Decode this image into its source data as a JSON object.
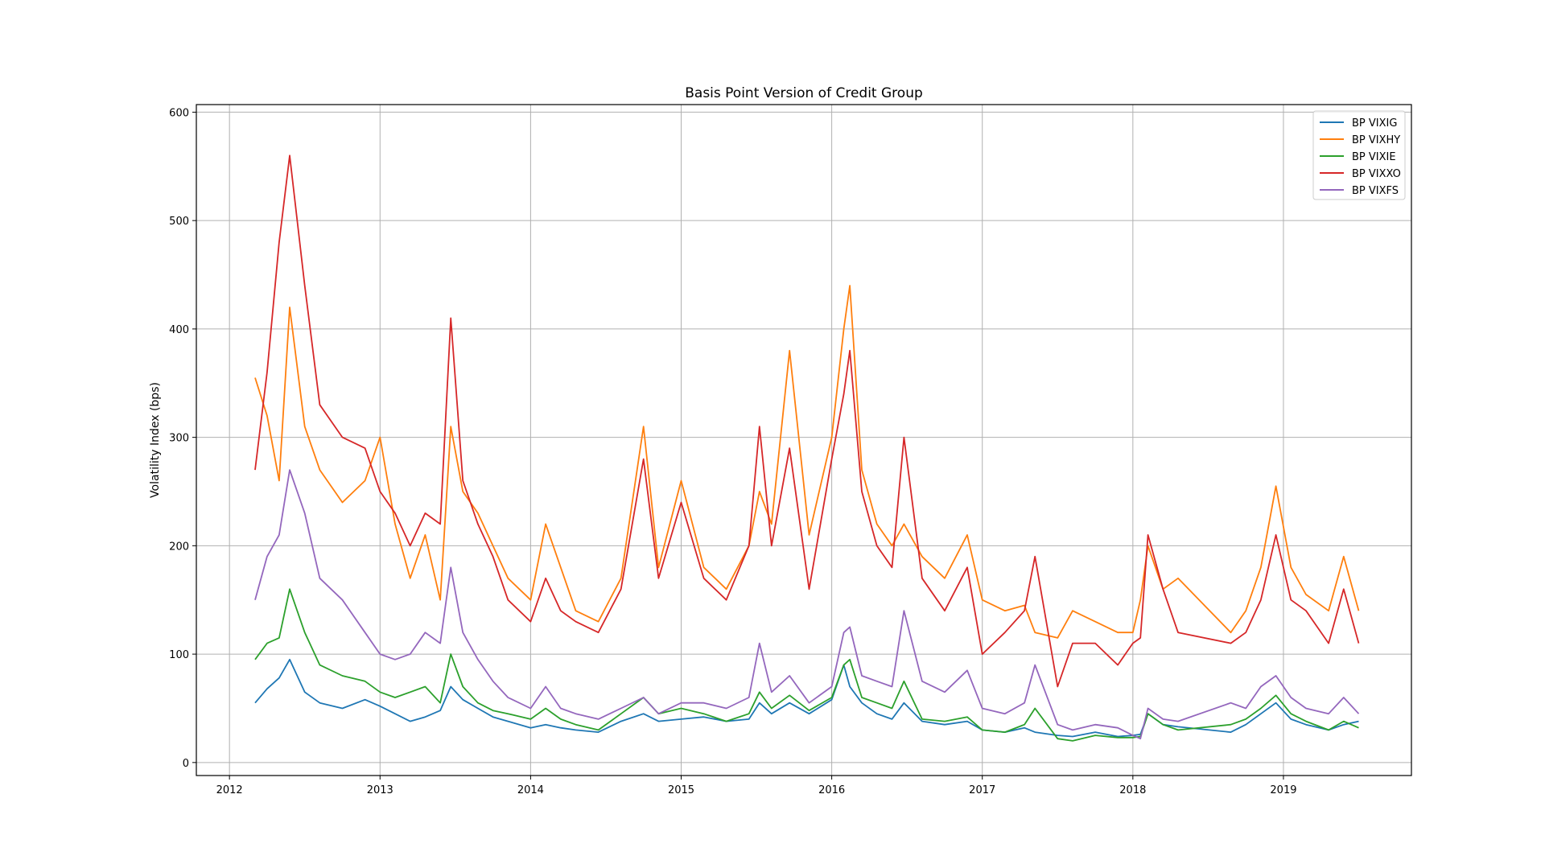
{
  "chart_data": {
    "type": "line",
    "title": "Basis Point Version of Credit Group",
    "xlabel": "",
    "ylabel": "Volatility Index (bps)",
    "x_ticks": [
      "2012",
      "2013",
      "2014",
      "2015",
      "2016",
      "2017",
      "2018",
      "2019"
    ],
    "y_ticks": [
      "0",
      "100",
      "200",
      "300",
      "400",
      "500",
      "600"
    ],
    "xlim": [
      2011.78,
      2019.85
    ],
    "ylim": [
      -12,
      607
    ],
    "grid": true,
    "legend_position": "top-right",
    "x": [
      2012.17,
      2012.25,
      2012.33,
      2012.4,
      2012.5,
      2012.6,
      2012.75,
      2012.9,
      2013.0,
      2013.1,
      2013.2,
      2013.3,
      2013.4,
      2013.47,
      2013.55,
      2013.65,
      2013.75,
      2013.85,
      2014.0,
      2014.1,
      2014.2,
      2014.3,
      2014.45,
      2014.6,
      2014.75,
      2014.85,
      2015.0,
      2015.15,
      2015.3,
      2015.45,
      2015.52,
      2015.6,
      2015.72,
      2015.85,
      2016.0,
      2016.08,
      2016.12,
      2016.2,
      2016.3,
      2016.4,
      2016.48,
      2016.6,
      2016.75,
      2016.9,
      2017.0,
      2017.15,
      2017.28,
      2017.35,
      2017.5,
      2017.6,
      2017.75,
      2017.9,
      2018.0,
      2018.05,
      2018.1,
      2018.2,
      2018.3,
      2018.65,
      2018.75,
      2018.85,
      2018.95,
      2019.05,
      2019.15,
      2019.3,
      2019.4,
      2019.5
    ],
    "series": [
      {
        "name": "BP VIXIG",
        "color": "#1f77b4",
        "values": [
          55,
          68,
          78,
          95,
          65,
          55,
          50,
          58,
          52,
          45,
          38,
          42,
          48,
          70,
          58,
          50,
          42,
          38,
          32,
          35,
          32,
          30,
          28,
          38,
          45,
          38,
          40,
          42,
          38,
          40,
          55,
          45,
          55,
          45,
          58,
          90,
          70,
          55,
          45,
          40,
          55,
          38,
          35,
          38,
          30,
          28,
          32,
          28,
          25,
          24,
          28,
          24,
          25,
          26,
          45,
          35,
          33,
          28,
          35,
          45,
          55,
          40,
          35,
          30,
          35,
          38
        ]
      },
      {
        "name": "BP VIXHY",
        "color": "#ff7f0e",
        "values": [
          355,
          320,
          260,
          420,
          310,
          270,
          240,
          260,
          300,
          220,
          170,
          210,
          150,
          310,
          250,
          230,
          200,
          170,
          150,
          220,
          180,
          140,
          130,
          170,
          310,
          180,
          260,
          180,
          160,
          200,
          250,
          220,
          380,
          210,
          300,
          400,
          440,
          270,
          220,
          200,
          220,
          190,
          170,
          210,
          150,
          140,
          145,
          120,
          115,
          140,
          130,
          120,
          120,
          150,
          200,
          160,
          170,
          120,
          140,
          180,
          255,
          180,
          155,
          140,
          190,
          140
        ]
      },
      {
        "name": "BP VIXIE",
        "color": "#2ca02c",
        "values": [
          95,
          110,
          115,
          160,
          120,
          90,
          80,
          75,
          65,
          60,
          65,
          70,
          55,
          100,
          70,
          55,
          48,
          45,
          40,
          50,
          40,
          35,
          30,
          45,
          60,
          45,
          50,
          45,
          38,
          45,
          65,
          50,
          62,
          48,
          60,
          90,
          95,
          60,
          55,
          50,
          75,
          40,
          38,
          42,
          30,
          28,
          35,
          50,
          22,
          20,
          25,
          23,
          23,
          24,
          45,
          35,
          30,
          35,
          40,
          50,
          62,
          45,
          38,
          30,
          38,
          32
        ]
      },
      {
        "name": "BP VIXXO",
        "color": "#d62728",
        "values": [
          270,
          360,
          480,
          560,
          440,
          330,
          300,
          290,
          250,
          230,
          200,
          230,
          220,
          410,
          260,
          220,
          190,
          150,
          130,
          170,
          140,
          130,
          120,
          160,
          280,
          170,
          240,
          170,
          150,
          200,
          310,
          200,
          290,
          160,
          280,
          340,
          380,
          250,
          200,
          180,
          300,
          170,
          140,
          180,
          100,
          120,
          140,
          190,
          70,
          110,
          110,
          90,
          110,
          115,
          210,
          160,
          120,
          110,
          120,
          150,
          210,
          150,
          140,
          110,
          160,
          110
        ]
      },
      {
        "name": "BP VIXFS",
        "color": "#9467bd",
        "values": [
          150,
          190,
          210,
          270,
          230,
          170,
          150,
          120,
          100,
          95,
          100,
          120,
          110,
          180,
          120,
          95,
          75,
          60,
          50,
          70,
          50,
          45,
          40,
          50,
          60,
          45,
          55,
          55,
          50,
          60,
          110,
          65,
          80,
          55,
          70,
          120,
          125,
          80,
          75,
          70,
          140,
          75,
          65,
          85,
          50,
          45,
          55,
          90,
          35,
          30,
          35,
          32,
          25,
          22,
          50,
          40,
          38,
          55,
          50,
          70,
          80,
          60,
          50,
          45,
          60,
          45
        ]
      }
    ]
  }
}
